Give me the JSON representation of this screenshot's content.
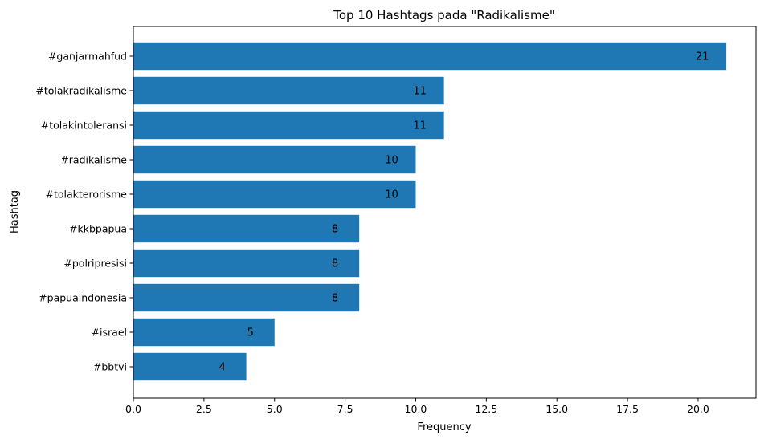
{
  "chart_data": {
    "type": "bar",
    "orientation": "horizontal",
    "title": "Top 10 Hashtags pada \"Radikalisme\"",
    "xlabel": "Frequency",
    "ylabel": "Hashtag",
    "categories": [
      "#ganjarmahfud",
      "#tolakradikalisme",
      "#tolakintoleransi",
      "#radikalisme",
      "#tolakterorisme",
      "#kkbpapua",
      "#polripresisi",
      "#papuaindonesia",
      "#israel",
      "#bbtvi"
    ],
    "values": [
      21,
      11,
      11,
      10,
      10,
      8,
      8,
      8,
      5,
      4
    ],
    "value_labels": [
      "21",
      "11",
      "11",
      "10",
      "10",
      "8",
      "8",
      "8",
      "5",
      "4"
    ],
    "x_ticks": [
      0,
      2.5,
      5,
      7.5,
      10,
      12.5,
      15,
      17.5,
      20
    ],
    "x_tick_labels": [
      "0.0",
      "2.5",
      "5.0",
      "7.5",
      "10.0",
      "12.5",
      "15.0",
      "17.5",
      "20.0"
    ],
    "xlim": [
      0,
      22.05
    ],
    "grid": false,
    "legend": "none",
    "bar_color": "#1f77b4"
  }
}
